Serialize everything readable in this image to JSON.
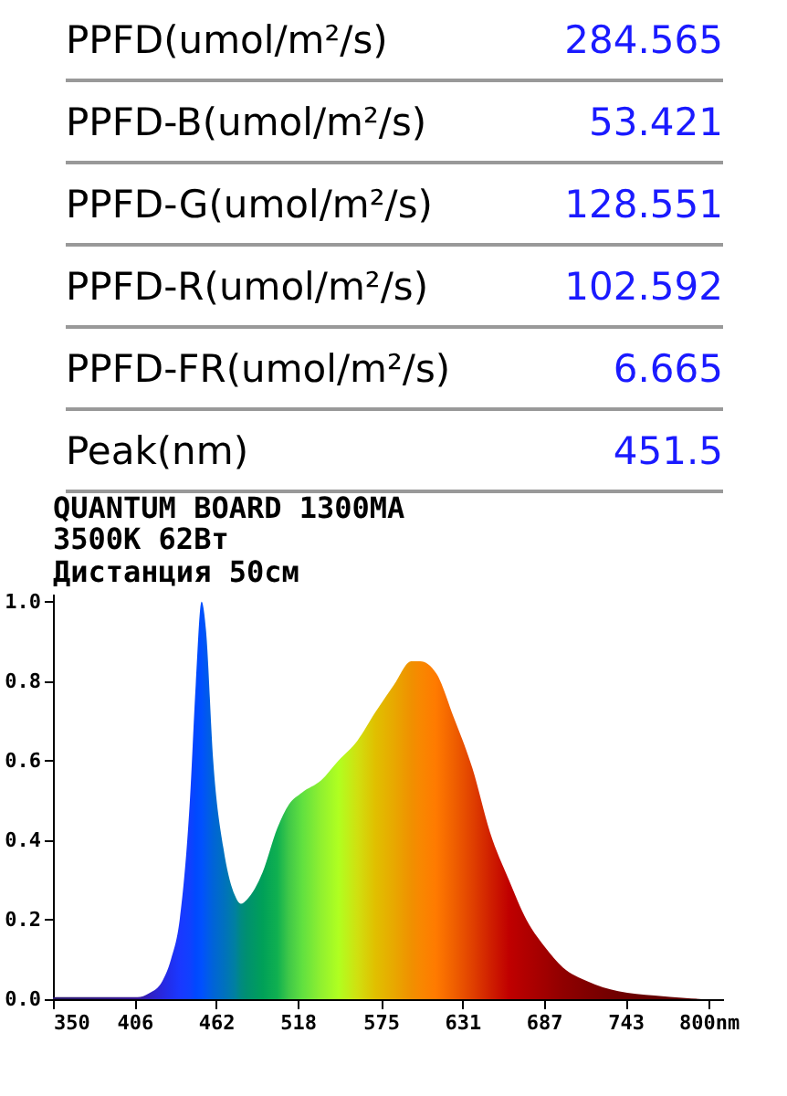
{
  "chart_data": {
    "type": "area",
    "title": "QUANTUM BOARD 1300MA",
    "subtitle": "3500K 62Вт\nДистанция 50см",
    "annotations": [
      "PPFD(umol/m²/s) 284.565",
      "PPFD-B(umol/m²/s) 53.421",
      "PPFD-G(umol/m²/s) 128.551",
      "PPFD-R(umol/m²/s) 102.592",
      "PPFD-FR(umol/m²/s) 6.665",
      "Peak(nm) 451.5"
    ],
    "x": [
      350,
      408,
      416,
      425,
      431,
      437,
      444,
      448,
      452,
      455,
      460,
      467,
      475,
      479,
      483,
      494,
      504,
      512,
      521,
      534,
      546,
      559,
      571,
      584,
      596,
      602,
      613,
      625,
      638,
      650,
      663,
      675,
      688,
      700,
      717,
      738,
      763,
      784,
      800,
      810
    ],
    "values": [
      0.005,
      0.005,
      0.015,
      0.045,
      0.1,
      0.2,
      0.5,
      0.79,
      1.0,
      0.93,
      0.6,
      0.38,
      0.26,
      0.24,
      0.25,
      0.32,
      0.43,
      0.49,
      0.52,
      0.55,
      0.6,
      0.65,
      0.72,
      0.79,
      0.85,
      0.85,
      0.82,
      0.71,
      0.58,
      0.42,
      0.3,
      0.2,
      0.13,
      0.08,
      0.045,
      0.02,
      0.009,
      0.003,
      0,
      0
    ],
    "colors": [
      "#2a1a6a",
      "#3a1a9a",
      "#3020c0",
      "#2828e0",
      "#2030f0",
      "#1a38ff",
      "#1040ff",
      "#0048ff",
      "#0050ff",
      "#0058f0",
      "#0064d8",
      "#0070c0",
      "#0080a0",
      "#008a80",
      "#009070",
      "#00a058",
      "#10b050",
      "#40c848",
      "#60e040",
      "#90f030",
      "#b0ff20",
      "#d0e010",
      "#e0c000",
      "#e8a800",
      "#f09000",
      "#f88800",
      "#ff7a00",
      "#f06000",
      "#e04000",
      "#d02000",
      "#c00000",
      "#b00000",
      "#a00000",
      "#900000",
      "#800000",
      "#700000",
      "#640000",
      "#600000",
      "#600000",
      "#600000"
    ],
    "xlim": [
      350,
      810
    ],
    "ylim": [
      0,
      1.02
    ],
    "xticks": [
      350,
      406,
      462,
      518,
      575,
      631,
      687,
      743,
      {
        "value": 800,
        "label": "800nm"
      }
    ],
    "yticks": [
      {
        "value": 0,
        "label": "0.0"
      },
      {
        "value": 0.2,
        "label": "0.2"
      },
      {
        "value": 0.4,
        "label": "0.4"
      },
      {
        "value": 0.6,
        "label": "0.6"
      },
      {
        "value": 0.8,
        "label": "0.8"
      },
      {
        "value": 1,
        "label": "1.0"
      }
    ]
  }
}
